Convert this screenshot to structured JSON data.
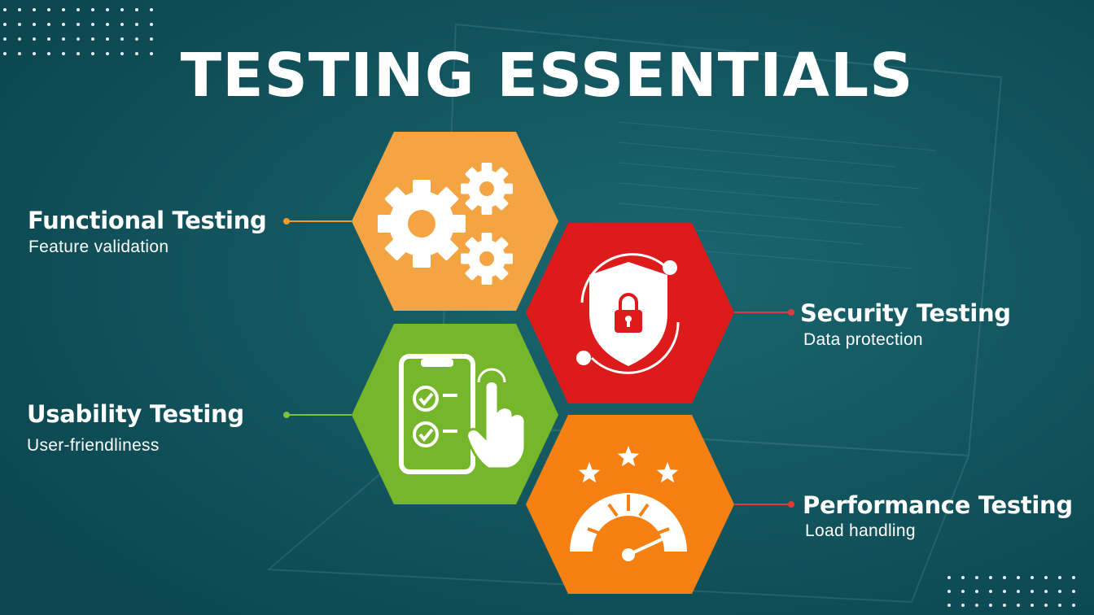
{
  "title": "TESTING ESSENTIALS",
  "colors": {
    "background": "#10535e",
    "functional": "#f5a443",
    "security": "#de1b1b",
    "usability": "#76b62a",
    "performance": "#f68012",
    "connector_functional": "#f39a2f",
    "connector_security": "#e03a3a",
    "connector_usability": "#7ac040",
    "connector_performance": "#e03a3a"
  },
  "items": [
    {
      "id": "functional",
      "title": "Functional Testing",
      "subtitle": "Feature validation",
      "icon": "gears-icon"
    },
    {
      "id": "security",
      "title": "Security Testing",
      "subtitle": "Data protection",
      "icon": "shield-lock-icon"
    },
    {
      "id": "usability",
      "title": "Usability Testing",
      "subtitle": "User-friendliness",
      "icon": "phone-checklist-icon"
    },
    {
      "id": "performance",
      "title": "Performance Testing",
      "subtitle": "Load handling",
      "icon": "speedometer-stars-icon"
    }
  ]
}
